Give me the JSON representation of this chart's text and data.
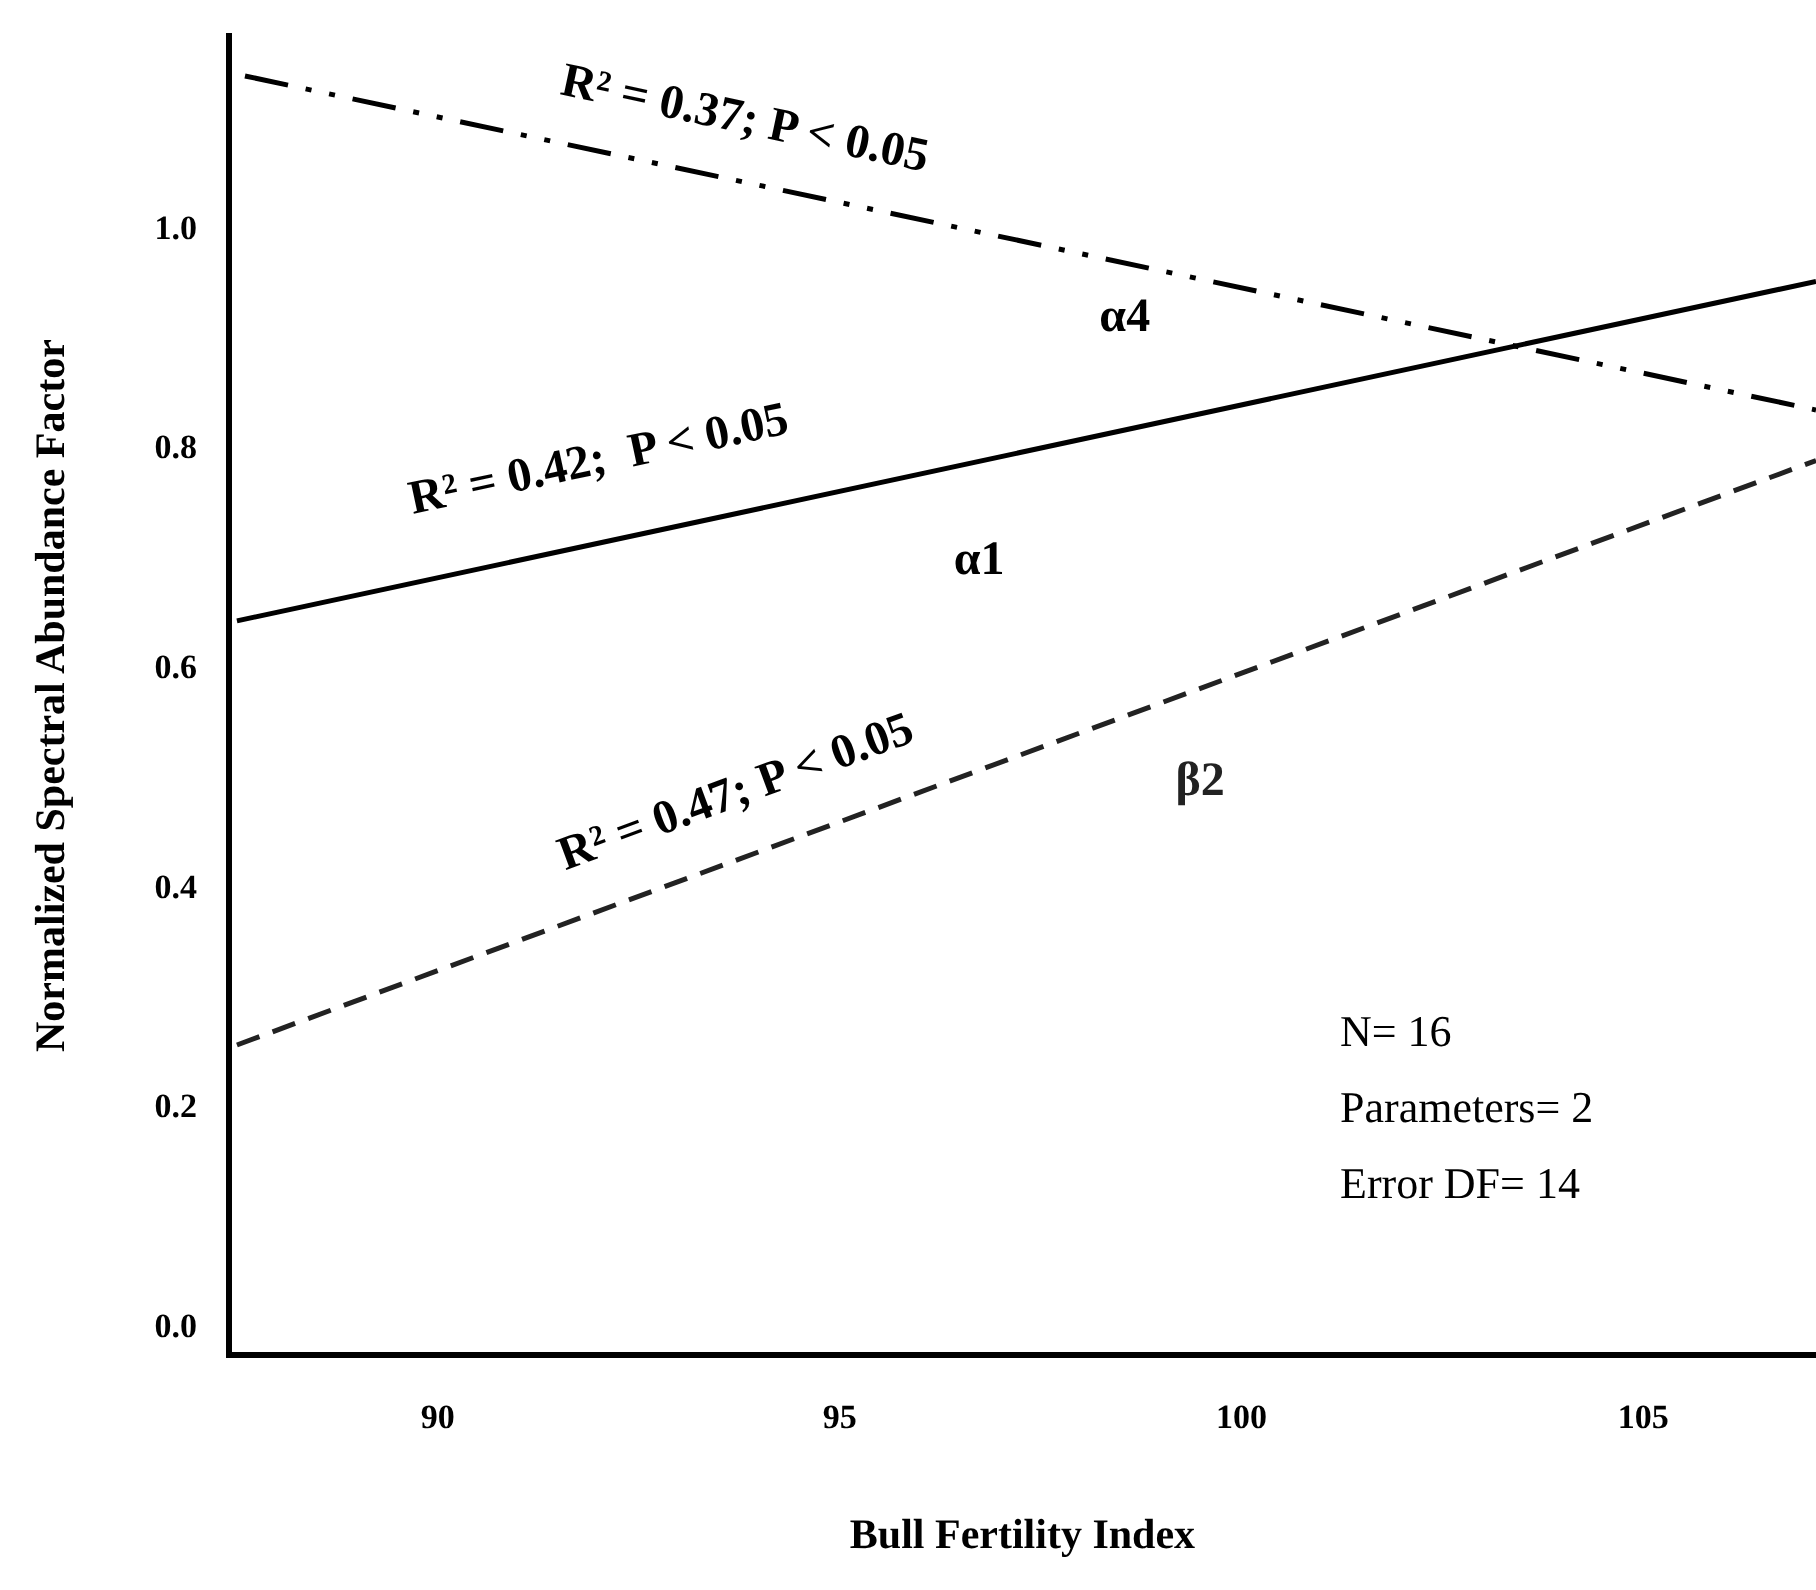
{
  "chart_data": {
    "type": "line",
    "xlabel": "Bull Fertility Index",
    "ylabel": "Normalized Spectral Abundance Factor",
    "xlim": [
      87.4,
      107.15
    ],
    "xticks": [
      90,
      95,
      100,
      105
    ],
    "ylim": [
      -0.024,
      1.176
    ],
    "yticks": [
      {
        "value": 0,
        "label": "0.0"
      },
      0.2,
      0.4,
      0.6,
      0.8,
      {
        "value": 1,
        "label": "1.0"
      }
    ],
    "grid": false,
    "legend": false,
    "marker": "none",
    "series": [
      {
        "type": "line",
        "name": "α4",
        "color": "#000000",
        "line_style": "dashdot",
        "x": [
          87.6,
          107.15
        ],
        "values": [
          1.14,
          0.836
        ]
      },
      {
        "type": "line",
        "name": "α1",
        "color": "#000000",
        "line_style": "solid",
        "x": [
          87.5,
          107.15
        ],
        "values": [
          0.644,
          0.953
        ]
      },
      {
        "type": "line",
        "name": "β2",
        "color": "#222222",
        "line_style": "dashed",
        "x": [
          87.5,
          107.15
        ],
        "values": [
          0.258,
          0.79
        ]
      }
    ],
    "annotations": [
      "R² = 0.37; P < 0.05",
      "R² = 0.42;  P < 0.05",
      "R² = 0.47; P < 0.05",
      "N= 16",
      "Parameters= 2",
      "Error DF= 14"
    ]
  }
}
